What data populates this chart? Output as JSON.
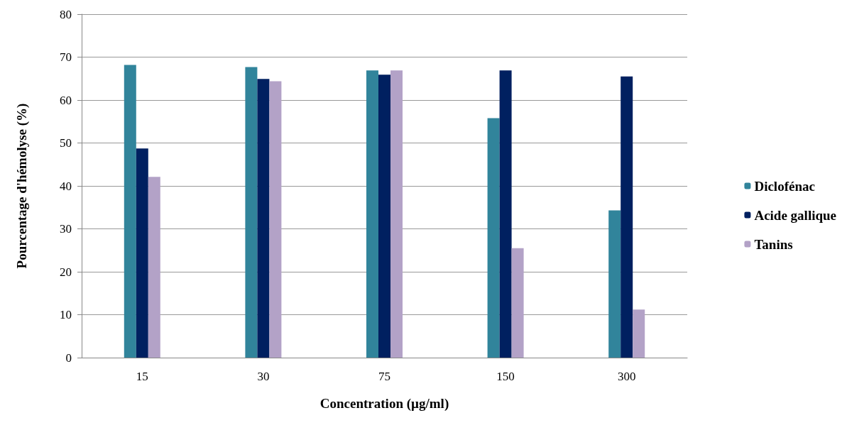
{
  "chart_data": {
    "type": "bar",
    "xlabel": "Concentration (µg/ml)",
    "ylabel": "Pourcentage d'hémolyse (%)",
    "categories": [
      "15",
      "30",
      "75",
      "150",
      "300"
    ],
    "series": [
      {
        "name": "Diclofénac",
        "color": "#31849b",
        "values": [
          68.2,
          67.7,
          66.9,
          55.8,
          34.3
        ]
      },
      {
        "name": "Acide gallique",
        "color": "#002060",
        "values": [
          48.7,
          64.9,
          65.9,
          66.9,
          65.5
        ]
      },
      {
        "name": "Tanins",
        "color": "#b3a2c7",
        "values": [
          42.1,
          64.4,
          66.9,
          25.5,
          11.2
        ]
      }
    ],
    "ylim": [
      0,
      80
    ],
    "yticks": [
      0,
      10,
      20,
      30,
      40,
      50,
      60,
      70,
      80
    ],
    "grid": "y",
    "legend": "right"
  }
}
